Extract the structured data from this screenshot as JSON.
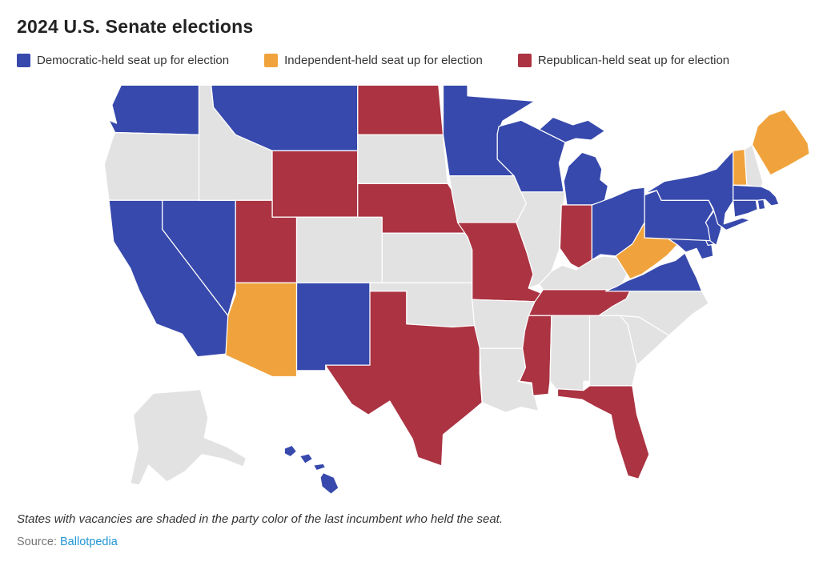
{
  "header": {
    "title": "2024 U.S. Senate elections"
  },
  "legend": {
    "items": [
      {
        "key": "dem",
        "label": "Democratic-held seat up for election",
        "color": "#3749ac"
      },
      {
        "key": "ind",
        "label": "Independent-held seat up for election",
        "color": "#f0a33c"
      },
      {
        "key": "rep",
        "label": "Republican-held seat up for election",
        "color": "#ab3342"
      }
    ]
  },
  "map": {
    "no_election_color": "#e2e2e2",
    "border_color": "#ffffff",
    "states": [
      {
        "id": "WA",
        "name": "Washington",
        "status": "dem"
      },
      {
        "id": "OR",
        "name": "Oregon",
        "status": "none"
      },
      {
        "id": "CA",
        "name": "California",
        "status": "dem"
      },
      {
        "id": "NV",
        "name": "Nevada",
        "status": "dem"
      },
      {
        "id": "ID",
        "name": "Idaho",
        "status": "none"
      },
      {
        "id": "MT",
        "name": "Montana",
        "status": "dem"
      },
      {
        "id": "WY",
        "name": "Wyoming",
        "status": "rep"
      },
      {
        "id": "UT",
        "name": "Utah",
        "status": "rep"
      },
      {
        "id": "CO",
        "name": "Colorado",
        "status": "none"
      },
      {
        "id": "AZ",
        "name": "Arizona",
        "status": "ind"
      },
      {
        "id": "NM",
        "name": "New Mexico",
        "status": "dem"
      },
      {
        "id": "ND",
        "name": "North Dakota",
        "status": "rep"
      },
      {
        "id": "SD",
        "name": "South Dakota",
        "status": "none"
      },
      {
        "id": "NE",
        "name": "Nebraska",
        "status": "rep"
      },
      {
        "id": "KS",
        "name": "Kansas",
        "status": "none"
      },
      {
        "id": "OK",
        "name": "Oklahoma",
        "status": "none"
      },
      {
        "id": "TX",
        "name": "Texas",
        "status": "rep"
      },
      {
        "id": "MN",
        "name": "Minnesota",
        "status": "dem"
      },
      {
        "id": "IA",
        "name": "Iowa",
        "status": "none"
      },
      {
        "id": "MO",
        "name": "Missouri",
        "status": "rep"
      },
      {
        "id": "AR",
        "name": "Arkansas",
        "status": "none"
      },
      {
        "id": "LA",
        "name": "Louisiana",
        "status": "none"
      },
      {
        "id": "WI",
        "name": "Wisconsin",
        "status": "dem"
      },
      {
        "id": "IL",
        "name": "Illinois",
        "status": "none"
      },
      {
        "id": "MI",
        "name": "Michigan",
        "status": "dem"
      },
      {
        "id": "IN",
        "name": "Indiana",
        "status": "rep"
      },
      {
        "id": "OH",
        "name": "Ohio",
        "status": "dem"
      },
      {
        "id": "KY",
        "name": "Kentucky",
        "status": "none"
      },
      {
        "id": "TN",
        "name": "Tennessee",
        "status": "rep"
      },
      {
        "id": "MS",
        "name": "Mississippi",
        "status": "rep"
      },
      {
        "id": "AL",
        "name": "Alabama",
        "status": "none"
      },
      {
        "id": "GA",
        "name": "Georgia",
        "status": "none"
      },
      {
        "id": "FL",
        "name": "Florida",
        "status": "rep"
      },
      {
        "id": "SC",
        "name": "South Carolina",
        "status": "none"
      },
      {
        "id": "NC",
        "name": "North Carolina",
        "status": "none"
      },
      {
        "id": "VA",
        "name": "Virginia",
        "status": "dem"
      },
      {
        "id": "WV",
        "name": "West Virginia",
        "status": "ind"
      },
      {
        "id": "MD",
        "name": "Maryland",
        "status": "dem"
      },
      {
        "id": "DE",
        "name": "Delaware",
        "status": "dem"
      },
      {
        "id": "PA",
        "name": "Pennsylvania",
        "status": "dem"
      },
      {
        "id": "NJ",
        "name": "New Jersey",
        "status": "dem"
      },
      {
        "id": "NY",
        "name": "New York",
        "status": "dem"
      },
      {
        "id": "VT",
        "name": "Vermont",
        "status": "ind"
      },
      {
        "id": "NH",
        "name": "New Hampshire",
        "status": "none"
      },
      {
        "id": "ME",
        "name": "Maine",
        "status": "ind"
      },
      {
        "id": "MA",
        "name": "Massachusetts",
        "status": "dem"
      },
      {
        "id": "RI",
        "name": "Rhode Island",
        "status": "dem"
      },
      {
        "id": "CT",
        "name": "Connecticut",
        "status": "dem"
      },
      {
        "id": "AK",
        "name": "Alaska",
        "status": "none"
      },
      {
        "id": "HI",
        "name": "Hawaii",
        "status": "dem"
      }
    ]
  },
  "footer": {
    "note": "States with vacancies are shaded in the party color of the last incumbent who held the seat.",
    "source_label": "Source:",
    "source_link_text": "Ballotpedia"
  }
}
